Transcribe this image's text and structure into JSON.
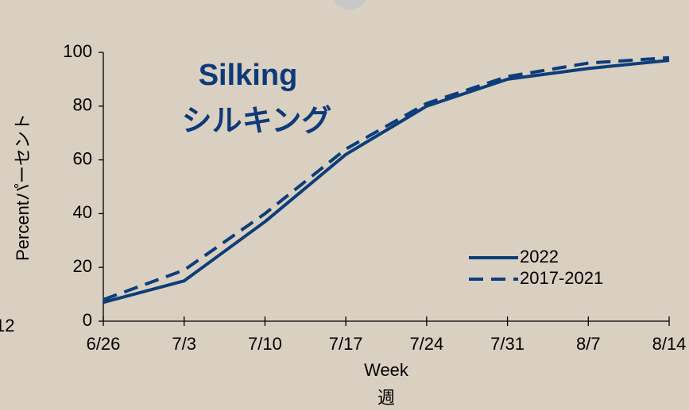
{
  "side_label": "12",
  "chart_data": {
    "type": "line",
    "title": "Silking",
    "subtitle": "シルキング",
    "y_label": "Percentパーセント",
    "x_label": "Week",
    "x_label_sub": "週",
    "categories": [
      "6/26",
      "7/3",
      "7/10",
      "7/17",
      "7/24",
      "7/31",
      "8/7",
      "8/14"
    ],
    "series": [
      {
        "name": "2022",
        "color": "#0d3d7a",
        "dashed": false,
        "values": [
          7,
          15,
          37,
          62,
          80,
          90,
          94,
          97
        ]
      },
      {
        "name": "2017-2021",
        "color": "#0d3d7a",
        "dashed": true,
        "values": [
          8,
          19,
          40,
          64,
          81,
          91,
          96,
          98
        ]
      }
    ],
    "ylim": [
      0,
      100
    ],
    "yticks": [
      0,
      20,
      40,
      60,
      80,
      100
    ],
    "legend": "lower right"
  }
}
